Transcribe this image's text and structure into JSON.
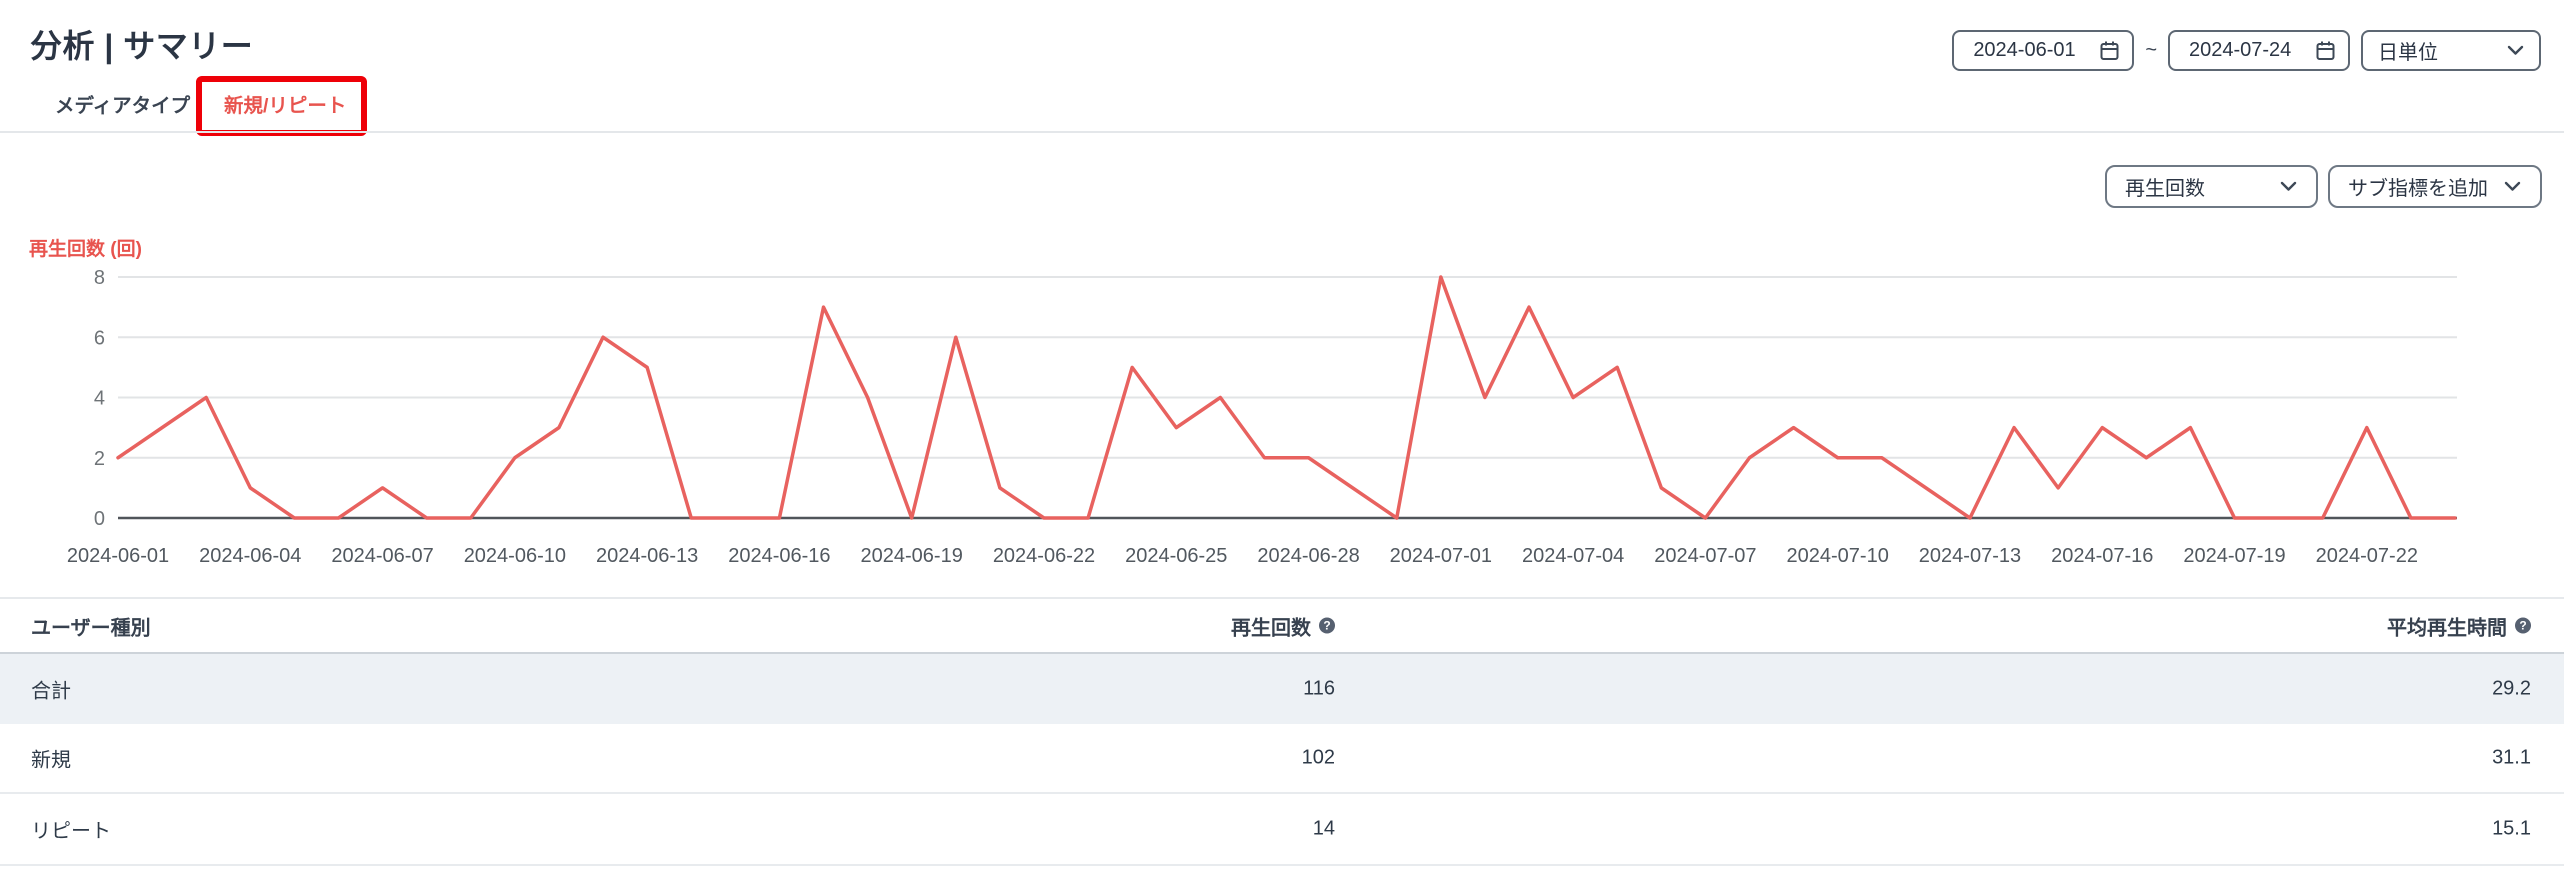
{
  "header": {
    "title": "分析 | サマリー",
    "date_start": "2024-06-01",
    "date_end": "2024-07-24",
    "range_separator": "~",
    "granularity": "日単位"
  },
  "tabs": [
    {
      "label": "メディアタイプ",
      "active": false
    },
    {
      "label": "新規/リピート",
      "active": true
    }
  ],
  "annotation": {
    "color": "#ee0008"
  },
  "metric_controls": {
    "metric": "再生回数",
    "sub_metric": "サブ指標を追加"
  },
  "chart_data": {
    "type": "line",
    "ylabel": "再生回数 (回)",
    "line_color": "#e8625f",
    "grid": true,
    "ylim": [
      0,
      8
    ],
    "yticks": [
      0,
      2,
      4,
      6,
      8
    ],
    "x_label_every": 3,
    "x": [
      "2024-06-01",
      "2024-06-02",
      "2024-06-03",
      "2024-06-04",
      "2024-06-05",
      "2024-06-06",
      "2024-06-07",
      "2024-06-08",
      "2024-06-09",
      "2024-06-10",
      "2024-06-11",
      "2024-06-12",
      "2024-06-13",
      "2024-06-14",
      "2024-06-15",
      "2024-06-16",
      "2024-06-17",
      "2024-06-18",
      "2024-06-19",
      "2024-06-20",
      "2024-06-21",
      "2024-06-22",
      "2024-06-23",
      "2024-06-24",
      "2024-06-25",
      "2024-06-26",
      "2024-06-27",
      "2024-06-28",
      "2024-06-29",
      "2024-06-30",
      "2024-07-01",
      "2024-07-02",
      "2024-07-03",
      "2024-07-04",
      "2024-07-05",
      "2024-07-06",
      "2024-07-07",
      "2024-07-08",
      "2024-07-09",
      "2024-07-10",
      "2024-07-11",
      "2024-07-12",
      "2024-07-13",
      "2024-07-14",
      "2024-07-15",
      "2024-07-16",
      "2024-07-17",
      "2024-07-18",
      "2024-07-19",
      "2024-07-20",
      "2024-07-21",
      "2024-07-22",
      "2024-07-23",
      "2024-07-24"
    ],
    "values": [
      2,
      3,
      4,
      1,
      0,
      0,
      1,
      0,
      0,
      2,
      3,
      6,
      5,
      0,
      0,
      0,
      7,
      4,
      0,
      6,
      1,
      0,
      0,
      5,
      3,
      4,
      2,
      2,
      1,
      0,
      8,
      4,
      7,
      4,
      5,
      1,
      0,
      2,
      3,
      2,
      2,
      1,
      0,
      3,
      1,
      3,
      2,
      3,
      0,
      0,
      0,
      3,
      0,
      0
    ]
  },
  "table": {
    "columns": [
      {
        "label": "ユーザー種別",
        "help": false
      },
      {
        "label": "再生回数",
        "help": true
      },
      {
        "label": "平均再生時間",
        "help": true
      }
    ],
    "rows": [
      {
        "user_type": "合計",
        "play_count": "116",
        "avg_play_time": "29.2"
      },
      {
        "user_type": "新規",
        "play_count": "102",
        "avg_play_time": "31.1"
      },
      {
        "user_type": "リピート",
        "play_count": "14",
        "avg_play_time": "15.1"
      }
    ]
  }
}
